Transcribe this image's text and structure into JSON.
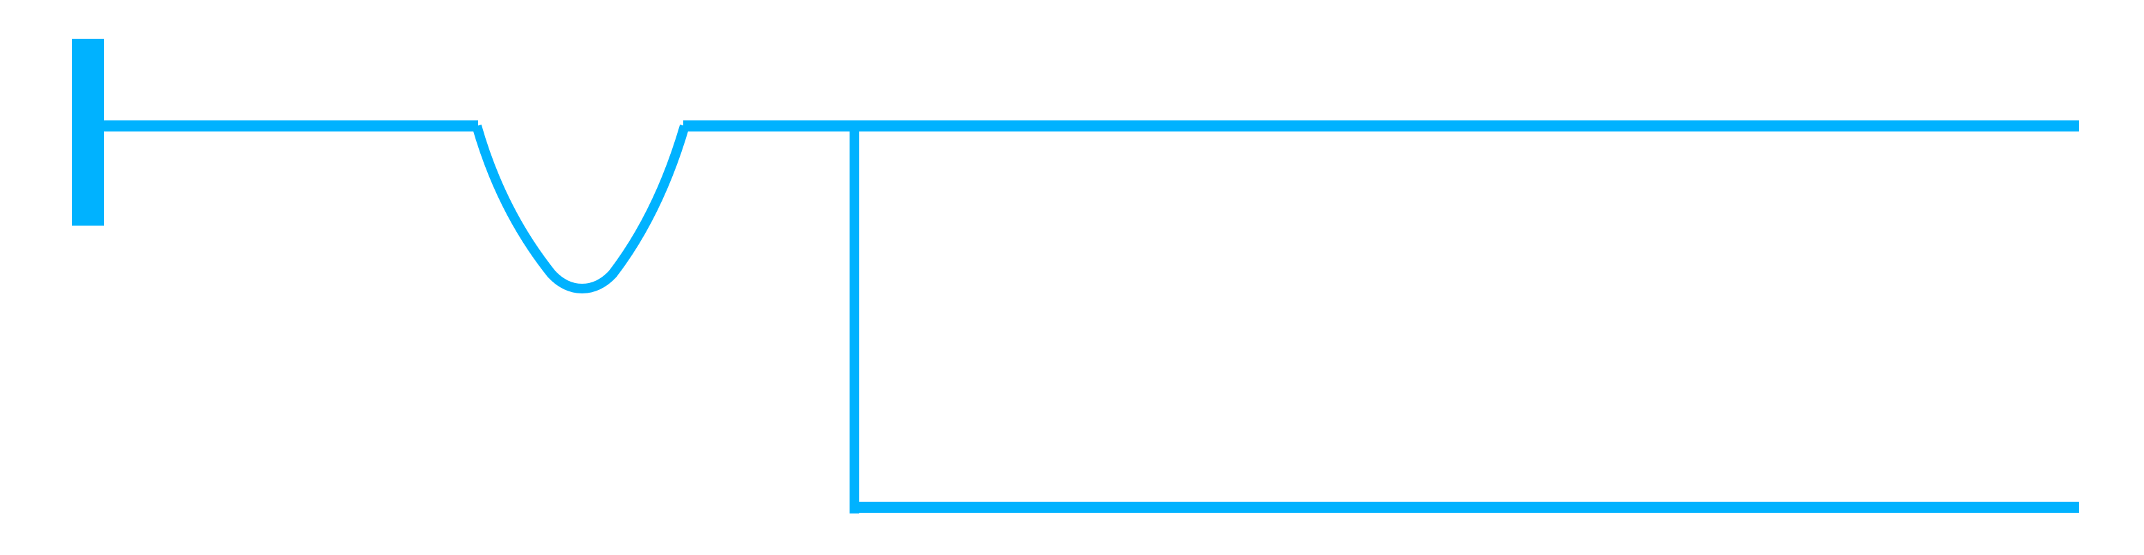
{
  "diagram": {
    "kind": "connector-line-drawing",
    "line_color": "#00b2ff",
    "background_color": "#ffffff",
    "elements": [
      {
        "name": "vertical-end-bar",
        "shape": "bar"
      },
      {
        "name": "left-horizontal-line",
        "shape": "line"
      },
      {
        "name": "u-shaped-dip",
        "shape": "curve"
      },
      {
        "name": "top-horizontal-line",
        "shape": "line"
      },
      {
        "name": "branch-vertical-line",
        "shape": "line"
      },
      {
        "name": "bottom-horizontal-line",
        "shape": "line"
      }
    ]
  }
}
